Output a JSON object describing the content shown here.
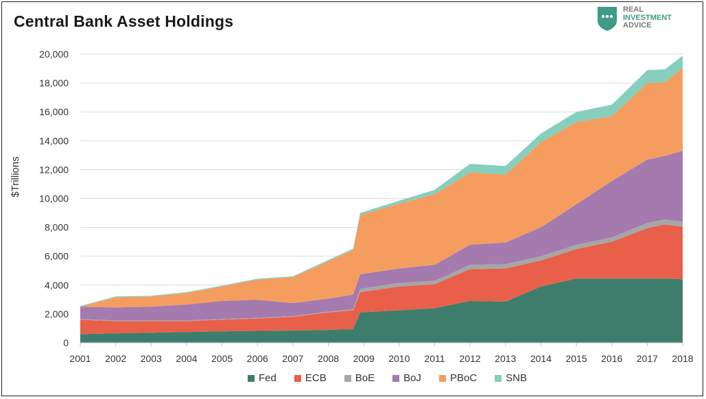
{
  "chart_data": {
    "type": "area",
    "stacked": true,
    "title": "Central Bank Asset Holdings",
    "xlabel": "",
    "ylabel": "$Trillions",
    "xlim": [
      2001,
      2018
    ],
    "ylim": [
      0,
      20000
    ],
    "y_ticks": [
      0,
      2000,
      4000,
      6000,
      8000,
      10000,
      12000,
      14000,
      16000,
      18000,
      20000
    ],
    "y_tick_labels": [
      "0",
      "2,000",
      "4,000",
      "6,000",
      "8,000",
      "10,000",
      "12,000",
      "14,000",
      "16,000",
      "18,000",
      "20,000"
    ],
    "x_ticks": [
      2001,
      2002,
      2003,
      2004,
      2005,
      2006,
      2007,
      2008,
      2009,
      2010,
      2011,
      2012,
      2013,
      2014,
      2015,
      2016,
      2017,
      2018
    ],
    "x_tick_labels": [
      "2001",
      "2002",
      "2003",
      "2004",
      "2005",
      "2006",
      "2007",
      "2008",
      "2009",
      "2010",
      "2011",
      "2012",
      "2013",
      "2014",
      "2015",
      "2016",
      "2017",
      "2018"
    ],
    "grid": "horizontal",
    "legend": "bottom",
    "x": [
      2001,
      2002,
      2003,
      2004,
      2005,
      2006,
      2007,
      2008,
      2008.7,
      2008.9,
      2010,
      2011,
      2012,
      2013,
      2014,
      2015,
      2016,
      2017,
      2017.5,
      2018
    ],
    "series": [
      {
        "name": "Fed",
        "color": "#3e7d6b",
        "values": [
          600,
          650,
          700,
          750,
          800,
          830,
          850,
          900,
          950,
          2100,
          2250,
          2400,
          2900,
          2850,
          3900,
          4450,
          4450,
          4450,
          4450,
          4400
        ]
      },
      {
        "name": "ECB",
        "color": "#e8604a",
        "values": [
          1000,
          850,
          800,
          750,
          800,
          850,
          950,
          1200,
          1300,
          1400,
          1650,
          1650,
          2200,
          2300,
          1800,
          2050,
          2550,
          3500,
          3750,
          3650
        ]
      },
      {
        "name": "BoE",
        "color": "#a6a6a6",
        "values": [
          50,
          50,
          50,
          50,
          50,
          50,
          50,
          60,
          80,
          250,
          250,
          250,
          300,
          300,
          300,
          300,
          300,
          350,
          350,
          350
        ]
      },
      {
        "name": "BoJ",
        "color": "#a47aaf",
        "values": [
          850,
          900,
          950,
          1100,
          1250,
          1250,
          900,
          900,
          1000,
          1000,
          1000,
          1100,
          1400,
          1500,
          2000,
          2800,
          3900,
          4400,
          4400,
          4900
        ]
      },
      {
        "name": "PBoC",
        "color": "#f59d5e",
        "values": [
          0,
          700,
          700,
          800,
          1000,
          1400,
          1800,
          2600,
          3100,
          4100,
          4500,
          4900,
          5000,
          4700,
          5900,
          5700,
          4500,
          5300,
          5100,
          5750
        ]
      },
      {
        "name": "SNB",
        "color": "#86cfbd",
        "values": [
          50,
          60,
          60,
          60,
          60,
          60,
          60,
          80,
          100,
          150,
          200,
          300,
          600,
          600,
          600,
          700,
          800,
          900,
          900,
          850
        ]
      }
    ]
  },
  "logo": {
    "line1": "REAL",
    "line2": "INVESTMENT",
    "line3": "ADVICE"
  }
}
